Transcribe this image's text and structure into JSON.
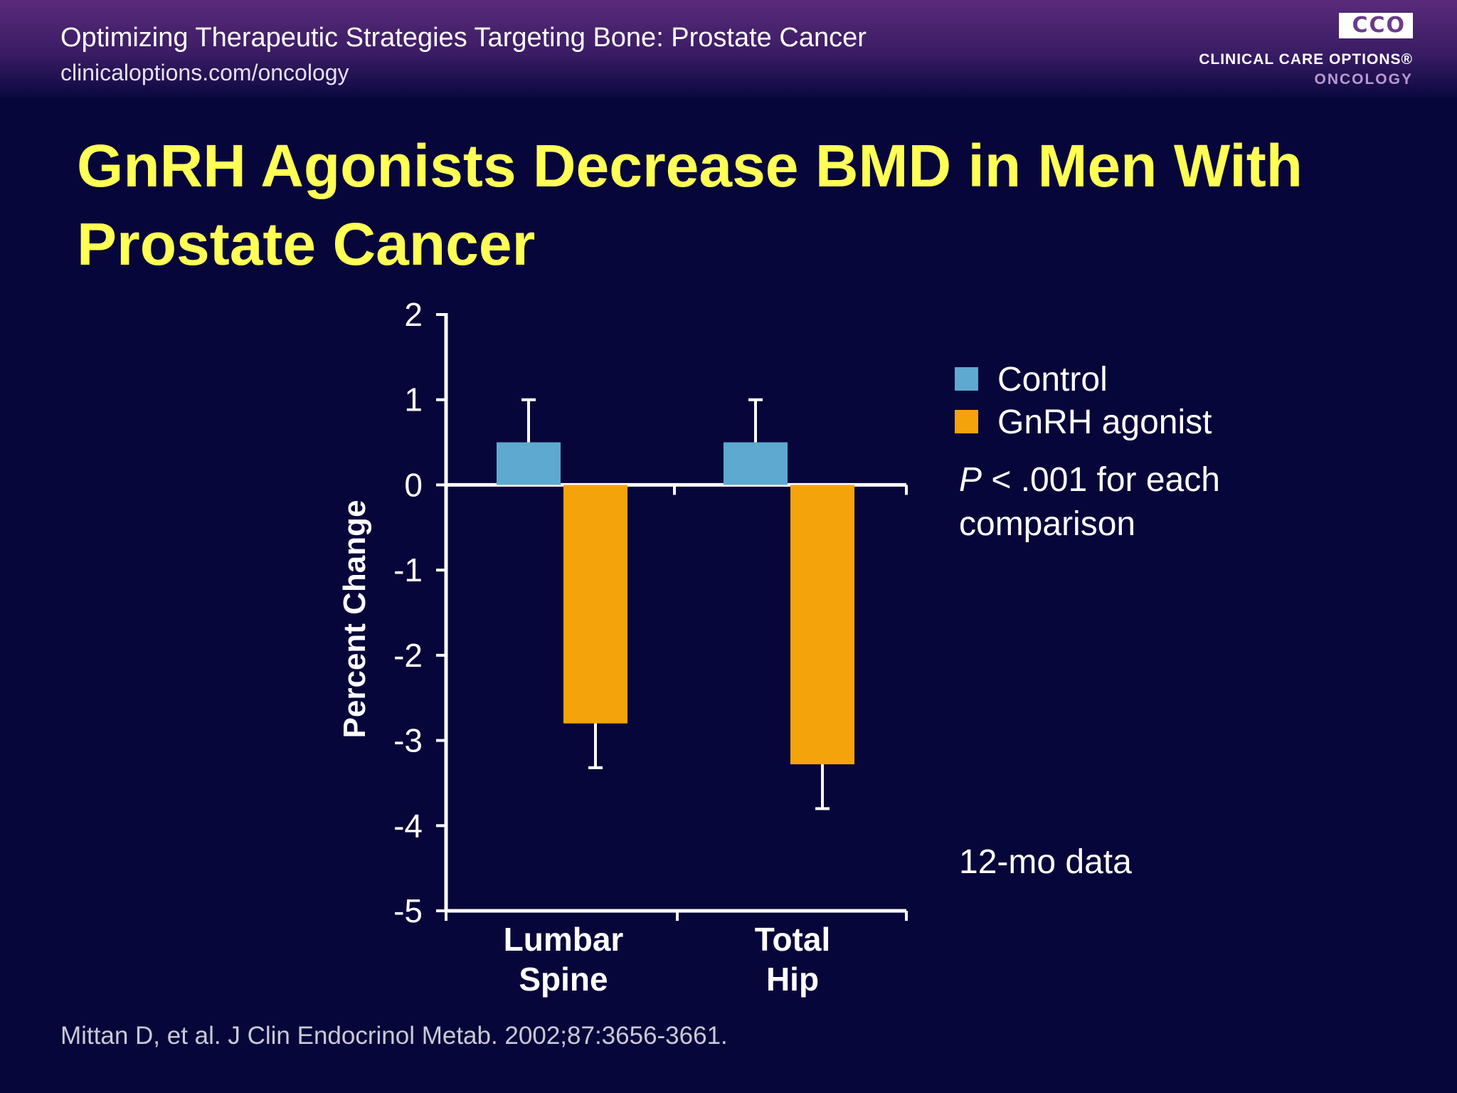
{
  "header": {
    "title": "Optimizing Therapeutic Strategies Targeting Bone: Prostate Cancer",
    "url": "clinicaloptions.com/oncology",
    "logo_letters": "CCO",
    "logo_name": "CLINICAL CARE OPTIONS®",
    "logo_sub": "ONCOLOGY"
  },
  "slide": {
    "title": "GnRH Agonists Decrease BMD in Men With Prostate Cancer"
  },
  "colors": {
    "control": "#5ea9cf",
    "gnrh": "#f5a30a",
    "title": "#ffff55",
    "background": "#07063a"
  },
  "legend": {
    "control": "Control",
    "gnrh": "GnRH agonist"
  },
  "notes": {
    "p_symbol": "P",
    "p_rest": " < .001 for each comparison",
    "period": "12-mo data"
  },
  "citation": "Mittan D, et al. J Clin Endocrinol Metab. 2002;87:3656-3661.",
  "chart_data": {
    "type": "bar",
    "ylabel": "Percent Change",
    "ylim": [
      -5,
      2
    ],
    "yticks": [
      2,
      1,
      0,
      -1,
      -2,
      -3,
      -4,
      -5
    ],
    "categories": [
      [
        "Lumbar",
        "Spine"
      ],
      [
        "Total",
        "Hip"
      ]
    ],
    "series": [
      {
        "name": "Control",
        "values": [
          0.5,
          0.5
        ],
        "error": [
          0.5,
          0.5
        ]
      },
      {
        "name": "GnRH agonist",
        "values": [
          -2.8,
          -3.28
        ],
        "error": [
          0.52,
          0.52
        ]
      }
    ]
  }
}
